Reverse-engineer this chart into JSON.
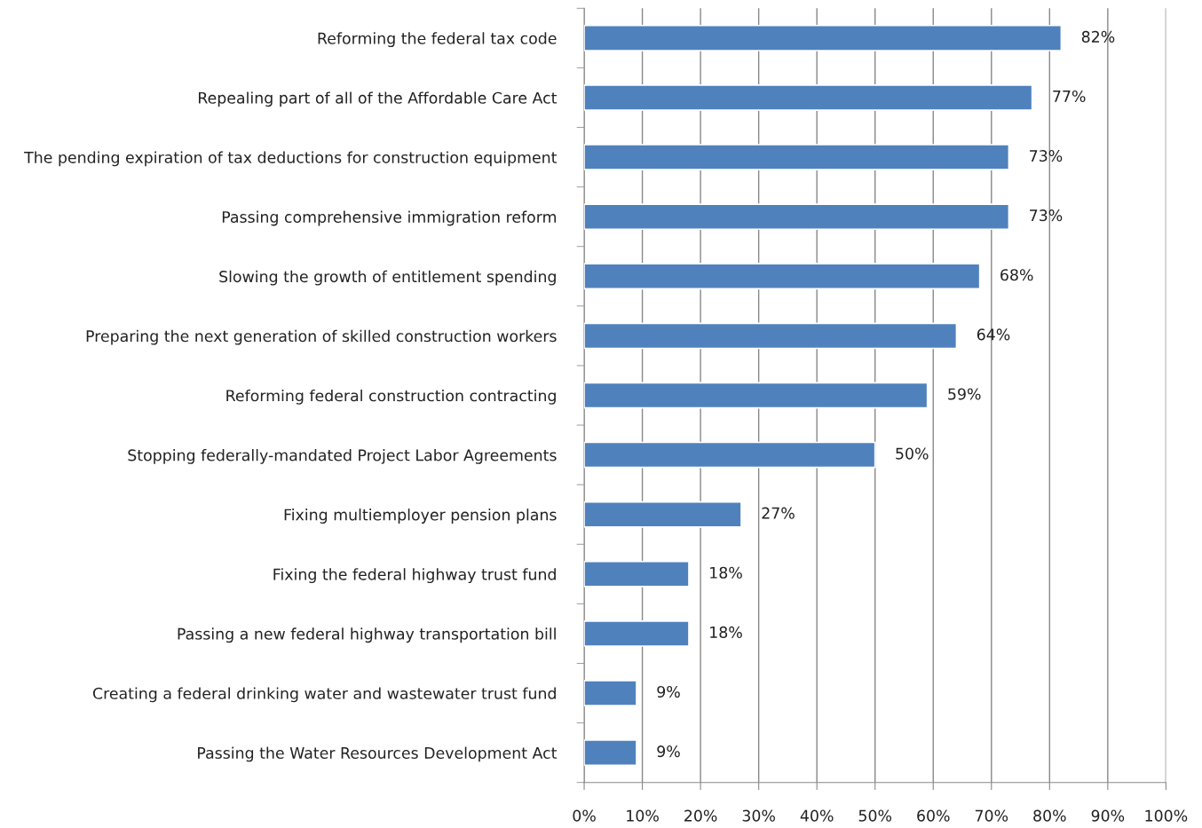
{
  "chart_data": {
    "type": "bar",
    "orientation": "horizontal",
    "categories": [
      "Reforming the federal tax code",
      "Repealing part of all of the Affordable Care Act",
      "The pending expiration of tax deductions for construction equipment",
      "Passing comprehensive immigration reform",
      "Slowing the growth of entitlement spending",
      "Preparing the next generation of skilled construction workers",
      "Reforming federal construction contracting",
      "Stopping federally-mandated Project Labor Agreements",
      "Fixing multiemployer pension plans",
      "Fixing the federal highway trust fund",
      "Passing a new federal highway transportation bill",
      "Creating a federal drinking water and wastewater trust fund",
      "Passing the Water Resources Development Act"
    ],
    "values": [
      82,
      77,
      73,
      73,
      68,
      64,
      59,
      50,
      27,
      18,
      18,
      9,
      9
    ],
    "value_labels": [
      "82%",
      "77%",
      "73%",
      "73%",
      "68%",
      "64%",
      "59%",
      "50%",
      "27%",
      "18%",
      "18%",
      "9%",
      "9%"
    ],
    "color": "#4f81bd",
    "xlim": [
      0,
      100
    ],
    "xticks": [
      {
        "value": 0,
        "label": "0%"
      },
      {
        "value": 10,
        "label": "10%"
      },
      {
        "value": 20,
        "label": "20%"
      },
      {
        "value": 30,
        "label": "30%"
      },
      {
        "value": 40,
        "label": "40%"
      },
      {
        "value": 50,
        "label": "50%"
      },
      {
        "value": 60,
        "label": "60%"
      },
      {
        "value": 70,
        "label": "70%"
      },
      {
        "value": 80,
        "label": "80%"
      },
      {
        "value": 90,
        "label": "90%"
      },
      {
        "value": 100,
        "label": "100%"
      }
    ],
    "grid": "x",
    "legend": false
  }
}
